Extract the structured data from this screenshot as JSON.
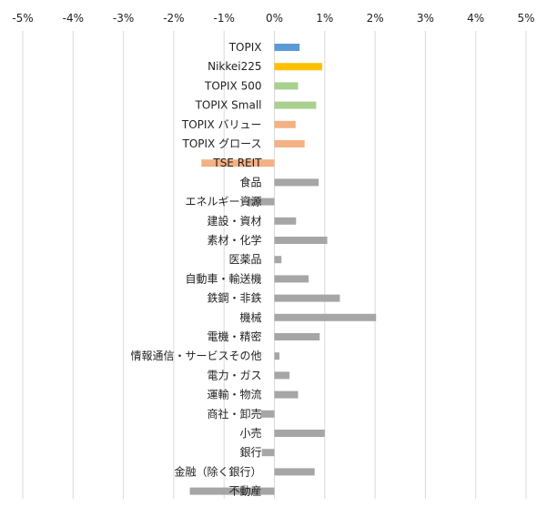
{
  "chart_data": {
    "type": "bar",
    "orientation": "horizontal",
    "xlim": [
      -5,
      5
    ],
    "x_ticks": [
      -5,
      -4,
      -3,
      -2,
      -1,
      0,
      1,
      2,
      3,
      4,
      5
    ],
    "x_tick_labels": [
      "-5%",
      "-4%",
      "-3%",
      "-2%",
      "-1%",
      "0%",
      "1%",
      "2%",
      "3%",
      "4%",
      "5%"
    ],
    "x_axis_position": "top",
    "grid": true,
    "categories": [
      "TOPIX",
      "Nikkei225",
      "TOPIX 500",
      "TOPIX Small",
      "TOPIX バリュー",
      "TOPIX グロース",
      "TSE REIT",
      "食品",
      "エネルギー資源",
      "建設・資材",
      "素材・化学",
      "医薬品",
      "自動車・輸送機",
      "鉄鋼・非鉄",
      "機械",
      "電機・精密",
      "情報通信・サービスその他",
      "電力・ガス",
      "運輸・物流",
      "商社・卸売",
      "小売",
      "銀行",
      "金融（除く銀行）",
      "不動産"
    ],
    "values": [
      0.5,
      0.95,
      0.47,
      0.83,
      0.42,
      0.6,
      -1.45,
      0.88,
      -0.53,
      0.43,
      1.05,
      0.14,
      0.68,
      1.3,
      2.02,
      0.9,
      0.1,
      0.3,
      0.47,
      -0.27,
      1.0,
      -0.25,
      0.8,
      -1.68
    ],
    "colors": [
      "#5b9bd5",
      "#ffc000",
      "#a9d18e",
      "#a9d18e",
      "#f4b183",
      "#f4b183",
      "#f4b183",
      "#a6a6a6",
      "#a6a6a6",
      "#a6a6a6",
      "#a6a6a6",
      "#a6a6a6",
      "#a6a6a6",
      "#a6a6a6",
      "#a6a6a6",
      "#a6a6a6",
      "#a6a6a6",
      "#a6a6a6",
      "#a6a6a6",
      "#a6a6a6",
      "#a6a6a6",
      "#a6a6a6",
      "#a6a6a6",
      "#a6a6a6"
    ]
  }
}
